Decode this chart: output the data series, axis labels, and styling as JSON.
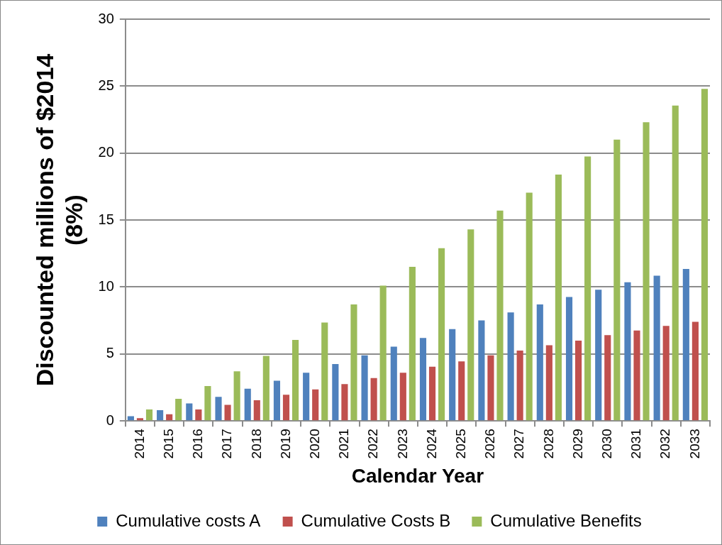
{
  "chart_data": {
    "type": "bar",
    "xlabel": "Calendar Year",
    "ylabel": "Discounted millions of $2014\n(8%)",
    "categories": [
      "2014",
      "2015",
      "2016",
      "2017",
      "2018",
      "2019",
      "2020",
      "2021",
      "2022",
      "2023",
      "2024",
      "2025",
      "2026",
      "2027",
      "2028",
      "2029",
      "2030",
      "2031",
      "2032",
      "2033"
    ],
    "series": [
      {
        "name": "Cumulative costs A",
        "color": "#4f81bd",
        "values": [
          0.35,
          0.8,
          1.3,
          1.8,
          2.4,
          3.0,
          3.6,
          4.25,
          4.9,
          5.55,
          6.2,
          6.85,
          7.5,
          8.1,
          8.7,
          9.25,
          9.8,
          10.35,
          10.85,
          11.35
        ]
      },
      {
        "name": "Cumulative Costs B",
        "color": "#c0504d",
        "values": [
          0.2,
          0.5,
          0.85,
          1.2,
          1.55,
          1.95,
          2.35,
          2.75,
          3.2,
          3.6,
          4.05,
          4.45,
          4.9,
          5.25,
          5.65,
          6.0,
          6.4,
          6.75,
          7.1,
          7.4
        ]
      },
      {
        "name": "Cumulative Benefits",
        "color": "#9bbb59",
        "values": [
          0.85,
          1.65,
          2.6,
          3.7,
          4.85,
          6.05,
          7.35,
          8.7,
          10.1,
          11.5,
          12.9,
          14.3,
          15.7,
          17.05,
          18.4,
          19.75,
          21.0,
          22.3,
          23.55,
          24.8
        ]
      }
    ],
    "ylim": [
      0,
      30
    ],
    "yticks": [
      0,
      5,
      10,
      15,
      20,
      25,
      30
    ],
    "grid": "y",
    "legend": "bottom"
  }
}
